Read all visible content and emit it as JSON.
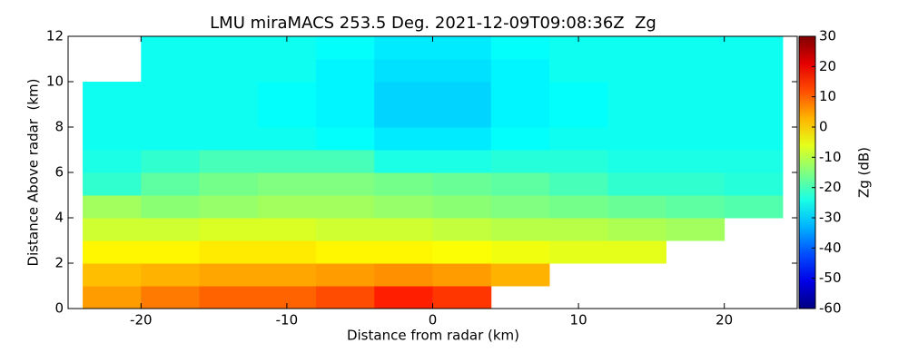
{
  "chart_data": {
    "type": "heatmap",
    "title": "LMU miraMACS 253.5 Deg. 2021-12-09T09:08:36Z  Zg",
    "x_label": "Distance from radar (km)",
    "y_label": "Distance Above radar  (km)",
    "colorbar_label": "Zg (dB)",
    "colormap": "jet",
    "x": [
      -22,
      -18,
      -14,
      -10,
      -6,
      -2,
      2,
      6,
      10,
      14,
      18,
      22
    ],
    "y": [
      0.5,
      1.5,
      2.5,
      3.5,
      4.5,
      5.5,
      6.5,
      7.5,
      8.5,
      9.5,
      10.5,
      11.5
    ],
    "values": [
      [
        5,
        8,
        10,
        10,
        12,
        16,
        14,
        null,
        null,
        null,
        null,
        null
      ],
      [
        2,
        3,
        4,
        4,
        5,
        6,
        5,
        3,
        null,
        null,
        null,
        null
      ],
      [
        -3,
        -3,
        -2,
        -2,
        -3,
        -3,
        -4,
        -5,
        -6,
        -6,
        null,
        null
      ],
      [
        -8,
        -8,
        -7,
        -7,
        -8,
        -8,
        -9,
        -10,
        -10,
        -11,
        -12,
        null
      ],
      [
        -12,
        -14,
        -13,
        -12,
        -12,
        -13,
        -14,
        -15,
        -16,
        -17,
        -18,
        -19
      ],
      [
        -22,
        -18,
        -16,
        -15,
        -15,
        -16,
        -17,
        -18,
        -20,
        -22,
        -22,
        -23
      ],
      [
        -24,
        -22,
        -20,
        -20,
        -20,
        -24,
        -24,
        -23,
        -23,
        -24,
        -24,
        -24
      ],
      [
        -25,
        -25,
        -25,
        -25,
        -26,
        -28,
        -28,
        -26,
        -25,
        -25,
        -25,
        -25
      ],
      [
        -25,
        -25,
        -25,
        -26,
        -27,
        -30,
        -30,
        -27,
        -26,
        -25,
        -25,
        -25
      ],
      [
        -25,
        -25,
        -25,
        -26,
        -27,
        -30,
        -30,
        -27,
        -26,
        -25,
        -25,
        -25
      ],
      [
        null,
        -25,
        -25,
        -25,
        -27,
        -29,
        -29,
        -27,
        -25,
        -25,
        -25,
        -25
      ],
      [
        null,
        -25,
        -25,
        -25,
        -26,
        -28,
        -28,
        -26,
        -25,
        -25,
        -25,
        -25
      ]
    ],
    "xlim": [
      -25,
      25
    ],
    "ylim": [
      0,
      12
    ],
    "zlim": [
      -60,
      30
    ],
    "xticks": [
      -20,
      -10,
      0,
      10,
      20
    ],
    "yticks": [
      0,
      2,
      4,
      6,
      8,
      10,
      12
    ],
    "zticks": [
      -60,
      -50,
      -40,
      -30,
      -20,
      -10,
      0,
      10,
      20,
      30
    ]
  }
}
